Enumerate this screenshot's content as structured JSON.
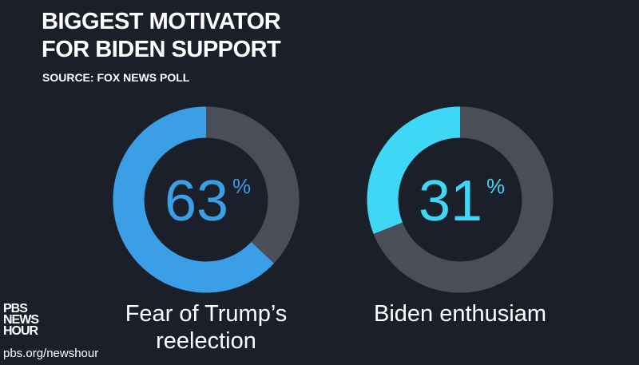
{
  "chart_data": {
    "type": "donut",
    "title": "BIGGEST MOTIVATOR FOR BIDEN SUPPORT",
    "subtitle": "SOURCE: FOX NEWS POLL",
    "categories": [
      "Fear of Trump’s reelection",
      "Biden enthusiam"
    ],
    "values": [
      63,
      31
    ],
    "unit": "%",
    "colors": [
      "#3b9fe8",
      "#3ed8f6"
    ],
    "track_color": "#4a4e58"
  },
  "branding": {
    "logo_lines": [
      "PBS",
      "NEWS",
      "HOUR"
    ],
    "url": "pbs.org/newshour"
  }
}
